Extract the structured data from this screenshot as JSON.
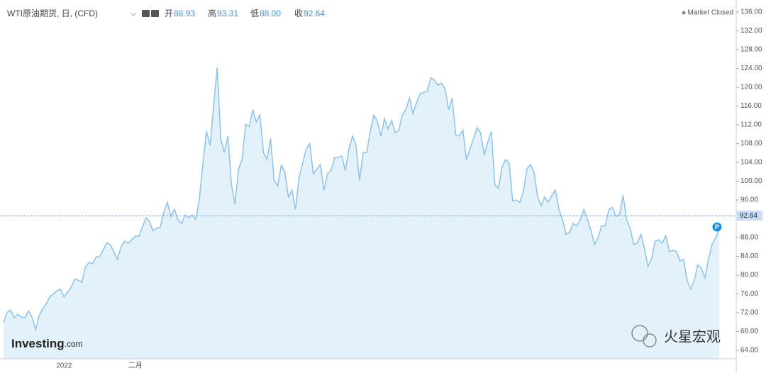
{
  "header": {
    "title": "WTI原油期货, 日, (CFD)",
    "open_label": "开",
    "open": "88.93",
    "high_label": "高",
    "high": "93.31",
    "low_label": "低",
    "low": "88.00",
    "close_label": "收",
    "close": "92.64",
    "status": "Market Closed"
  },
  "logo": {
    "brand": "Investing",
    "suffix": ".com"
  },
  "watermark": "火星宏观",
  "chart_data": {
    "type": "area",
    "categories": [
      null,
      null,
      null,
      null,
      null,
      null,
      null,
      null,
      null,
      null,
      null,
      null,
      null,
      null,
      null,
      null,
      null,
      "2022",
      null,
      null,
      null,
      null,
      null,
      null,
      null,
      null,
      null,
      null,
      null,
      null,
      null,
      null,
      null,
      null,
      null,
      null,
      null,
      "二月",
      null,
      null,
      null,
      null,
      null,
      null,
      null,
      null,
      null,
      null,
      null,
      null,
      null,
      null,
      null,
      null,
      null,
      null,
      null,
      null,
      null,
      null,
      null,
      null,
      null,
      null,
      null,
      null,
      null,
      null,
      null,
      null,
      null,
      null,
      null,
      null,
      null,
      null,
      null,
      null,
      null,
      null,
      null,
      null,
      null,
      null,
      null,
      null,
      null,
      null,
      null,
      null,
      null,
      null,
      null,
      null,
      null,
      null,
      null,
      null,
      null,
      null,
      null,
      null,
      null,
      null,
      null,
      null,
      null,
      null,
      null,
      null,
      null,
      null,
      null,
      null,
      null,
      null,
      null,
      null,
      null,
      null,
      null,
      null,
      null,
      null,
      null,
      null,
      null,
      null,
      null,
      null,
      null,
      null,
      null,
      null,
      null,
      null,
      null,
      null,
      null,
      null,
      null,
      null,
      null,
      null,
      null,
      null,
      null,
      null,
      null,
      null,
      null,
      null,
      null,
      null,
      null,
      null,
      null,
      null,
      null,
      null,
      null,
      null,
      null,
      null,
      null,
      null,
      null,
      null,
      null,
      null,
      null,
      null,
      null,
      null,
      null,
      null,
      null,
      null,
      null,
      null,
      null,
      null,
      null,
      null,
      null,
      null,
      null,
      null,
      null,
      null,
      null,
      null,
      null,
      null,
      null,
      null,
      null,
      null,
      null,
      null,
      null,
      null
    ],
    "values": [
      69.9,
      72.1,
      72.6,
      70.9,
      71.7,
      71.1,
      70.9,
      72.4,
      71.1,
      68.4,
      71.4,
      72.9,
      73.9,
      75.4,
      76.0,
      76.7,
      77.0,
      75.4,
      76.4,
      77.4,
      79.2,
      78.9,
      78.5,
      81.8,
      82.7,
      82.4,
      83.9,
      83.9,
      85.4,
      86.9,
      86.5,
      85.0,
      83.4,
      86.0,
      87.2,
      86.8,
      87.5,
      88.3,
      88.3,
      90.2,
      92.2,
      91.4,
      89.5,
      90.0,
      90.2,
      93.3,
      95.5,
      92.5,
      94.0,
      91.8,
      91.0,
      92.8,
      92.2,
      92.8,
      91.8,
      96.3,
      103.8,
      110.6,
      107.6,
      115.9,
      124.2,
      109.1,
      106.1,
      109.6,
      99.3,
      95.1,
      102.6,
      104.6,
      112.1,
      111.6,
      115.2,
      112.6,
      114.1,
      106.1,
      104.6,
      109.1,
      100.1,
      99.0,
      103.4,
      102.0,
      96.6,
      98.1,
      94.0,
      100.8,
      103.8,
      106.8,
      108.0,
      101.6,
      102.6,
      103.5,
      98.1,
      101.6,
      102.3,
      105.0,
      105.0,
      105.4,
      102.3,
      106.8,
      109.6,
      107.6,
      100.1,
      106.1,
      106.1,
      110.6,
      114.1,
      112.6,
      109.6,
      113.3,
      111.1,
      112.9,
      110.3,
      110.8,
      114.1,
      115.2,
      117.7,
      114.4,
      116.7,
      118.6,
      118.9,
      119.2,
      122.0,
      121.5,
      120.4,
      120.9,
      119.7,
      115.2,
      117.7,
      109.9,
      109.6,
      110.9,
      104.6,
      106.8,
      109.1,
      111.4,
      110.3,
      105.6,
      108.3,
      110.6,
      99.3,
      98.5,
      103.0,
      104.6,
      103.8,
      95.8,
      96.0,
      95.5,
      97.8,
      102.6,
      103.5,
      101.9,
      96.6,
      94.8,
      96.6,
      95.5,
      97.0,
      98.1,
      94.0,
      91.8,
      88.7,
      89.1,
      91.0,
      90.5,
      91.8,
      94.0,
      91.8,
      89.5,
      86.5,
      88.0,
      90.5,
      90.5,
      94.0,
      94.4,
      92.5,
      92.9,
      97.0,
      91.8,
      90.0,
      86.5,
      86.8,
      88.7,
      85.7,
      81.9,
      83.4,
      87.2,
      87.5,
      86.8,
      88.4,
      85.0,
      85.3,
      85.0,
      83.0,
      83.4,
      78.9,
      77.0,
      78.9,
      82.2,
      81.5,
      79.4,
      83.4,
      86.5,
      88.0,
      89.5
    ],
    "color": "#8ec2ea",
    "fill": "#e3f1fb",
    "ylim": [
      62.2,
      137.8
    ],
    "yticks": [
      {
        "value": 64,
        "label": "64.00"
      },
      {
        "value": 68,
        "label": "68.00"
      },
      {
        "value": 72,
        "label": "72.00"
      },
      {
        "value": 76,
        "label": "76.00"
      },
      {
        "value": 80,
        "label": "80.00"
      },
      {
        "value": 84,
        "label": "84.00"
      },
      {
        "value": 88,
        "label": "88.00"
      },
      {
        "value": 92,
        "label": "92.00"
      },
      {
        "value": 96,
        "label": "96.00"
      },
      {
        "value": 100,
        "label": "100.00"
      },
      {
        "value": 104,
        "label": "104.00"
      },
      {
        "value": 108,
        "label": "108.00"
      },
      {
        "value": 112,
        "label": "112.00"
      },
      {
        "value": 116,
        "label": "116.00"
      },
      {
        "value": 120,
        "label": "120.00"
      },
      {
        "value": 124,
        "label": "124.00"
      },
      {
        "value": 128,
        "label": "128.00"
      },
      {
        "value": 132,
        "label": "132.00"
      },
      {
        "value": 136,
        "label": "136.00"
      }
    ],
    "last_price": {
      "value": 92.64,
      "label": "92.64"
    },
    "marker": "P"
  }
}
